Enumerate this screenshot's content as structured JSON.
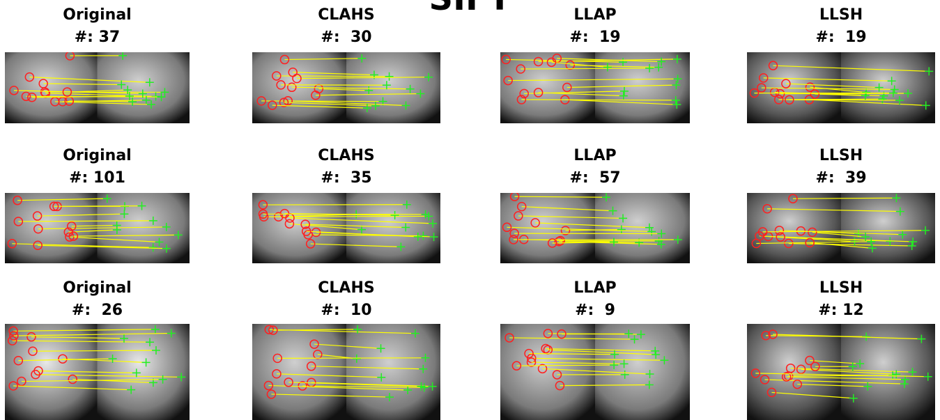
{
  "title": "SIFT",
  "panels": [
    [
      {
        "method": "Original",
        "count": "#: 37"
      },
      {
        "method": "CLAHS",
        "count": "#:  30"
      },
      {
        "method": "LLAP",
        "count": "#:  19"
      },
      {
        "method": "LLSH",
        "count": "#:  19"
      }
    ],
    [
      {
        "method": "Original",
        "count": "#: 101"
      },
      {
        "method": "CLAHS",
        "count": "#:  35"
      },
      {
        "method": "LLAP",
        "count": "#:  57"
      },
      {
        "method": "LLSH",
        "count": "#:  39"
      }
    ],
    [
      {
        "method": "Original",
        "count": "#:  26"
      },
      {
        "method": "CLAHS",
        "count": "#:  10"
      },
      {
        "method": "LLAP",
        "count": "#:  9"
      },
      {
        "method": "LLSH",
        "count": "#: 12"
      }
    ]
  ]
}
